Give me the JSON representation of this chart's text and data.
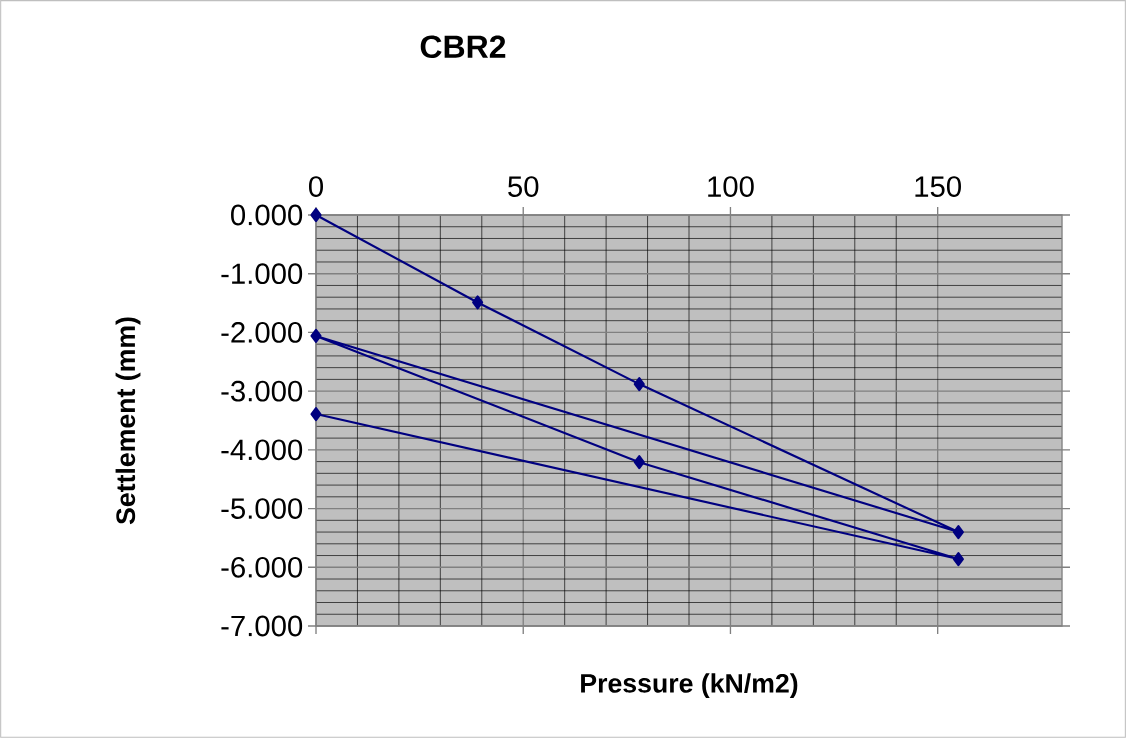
{
  "chart_data": {
    "type": "line",
    "title": "CBR2",
    "xlabel": "Pressure (kN/m2)",
    "ylabel": "Settlement (mm)",
    "x": [
      0,
      39,
      78,
      155,
      0,
      78,
      155,
      0
    ],
    "series": [
      {
        "color": "#000080",
        "values": [
          0,
          -1.49,
          -2.88,
          -5.4,
          -2.06,
          -4.21,
          -5.86,
          -3.39
        ]
      }
    ],
    "xlim": [
      0,
      180
    ],
    "xticks": [
      0,
      50,
      100,
      150
    ],
    "ylim": [
      -7,
      0
    ],
    "yticks": [
      {
        "value": 0,
        "label": "0.000"
      },
      {
        "value": -1,
        "label": "-1.000"
      },
      {
        "value": -2,
        "label": "-2.000"
      },
      {
        "value": -3,
        "label": "-3.000"
      },
      {
        "value": -4,
        "label": "-4.000"
      },
      {
        "value": -5,
        "label": "-5.000"
      },
      {
        "value": -6,
        "label": "-6.000"
      },
      {
        "value": -7,
        "label": "-7.000"
      }
    ],
    "grid": true,
    "marker": "diamond",
    "line_style": "solid",
    "legend": false
  }
}
